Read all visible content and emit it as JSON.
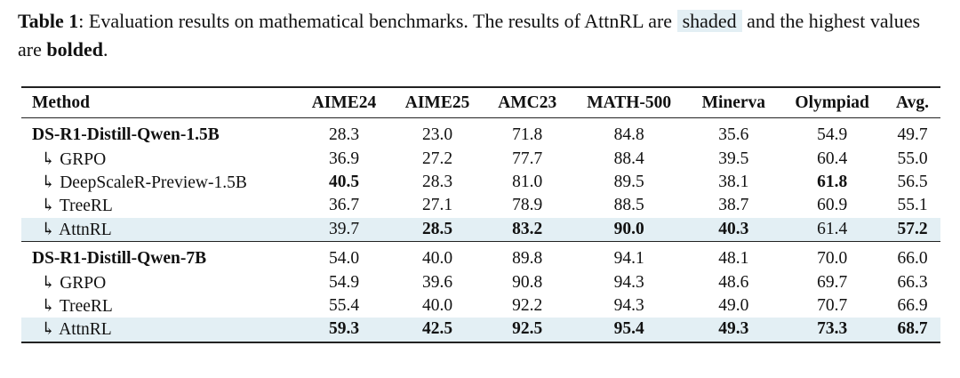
{
  "caption": {
    "label": "Table 1",
    "parts": [
      ": Evaluation results on mathematical benchmarks. The results of AttnRL are ",
      "shaded",
      " and the highest values are ",
      "bolded",
      "."
    ]
  },
  "table": {
    "header": [
      "Method",
      "AIME24",
      "AIME25",
      "AMC23",
      "MATH-500",
      "Minerva",
      "Olympiad",
      "Avg."
    ],
    "groups": [
      [
        [
          "DS-R1-Distill-Qwen-1.5B",
          "28.3",
          "23.0",
          "71.8",
          "84.8",
          "35.6",
          "54.9",
          "49.7"
        ],
        [
          "↳ GRPO",
          "36.9",
          "27.2",
          "77.7",
          "88.4",
          "39.5",
          "60.4",
          "55.0"
        ],
        [
          "↳ DeepScaleR-Preview-1.5B",
          "40.5",
          "28.3",
          "81.0",
          "89.5",
          "38.1",
          "61.8",
          "56.5"
        ],
        [
          "↳ TreeRL",
          "36.7",
          "27.1",
          "78.9",
          "88.5",
          "38.7",
          "60.9",
          "55.1"
        ],
        [
          "↳ AttnRL",
          "39.7",
          "28.5",
          "83.2",
          "90.0",
          "40.3",
          "61.4",
          "57.2"
        ]
      ],
      [
        [
          "DS-R1-Distill-Qwen-7B",
          "54.0",
          "40.0",
          "89.8",
          "94.1",
          "48.1",
          "70.0",
          "66.0"
        ],
        [
          "↳ GRPO",
          "54.9",
          "39.6",
          "90.8",
          "94.3",
          "48.6",
          "69.7",
          "66.3"
        ],
        [
          "↳ TreeRL",
          "55.4",
          "40.0",
          "92.2",
          "94.3",
          "49.0",
          "70.7",
          "66.9"
        ],
        [
          "↳ AttnRL",
          "59.3",
          "42.5",
          "92.5",
          "95.4",
          "49.3",
          "73.3",
          "68.7"
        ]
      ]
    ]
  }
}
